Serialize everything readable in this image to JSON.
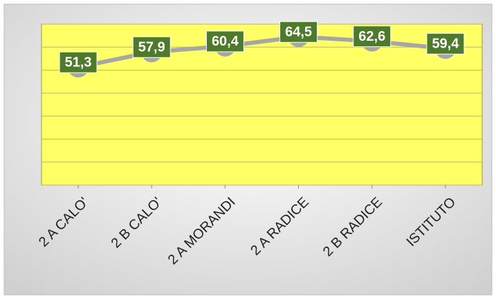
{
  "chart_data": {
    "type": "line",
    "categories": [
      "2 A CALO'",
      "2 B CALO'",
      "2 A MORANDI",
      "2 A RADICE",
      "2 B RADICE",
      "ISTITUTO"
    ],
    "values": [
      51.3,
      57.9,
      60.4,
      64.5,
      62.6,
      59.4
    ],
    "value_labels": [
      "51,3",
      "57,9",
      "60,4",
      "64,5",
      "62,6",
      "59,4"
    ],
    "color": "#a6a6a6",
    "ylim": [
      0,
      70
    ],
    "yticks": [
      0,
      10,
      20,
      30,
      40,
      50,
      60,
      70
    ],
    "grid": true
  }
}
